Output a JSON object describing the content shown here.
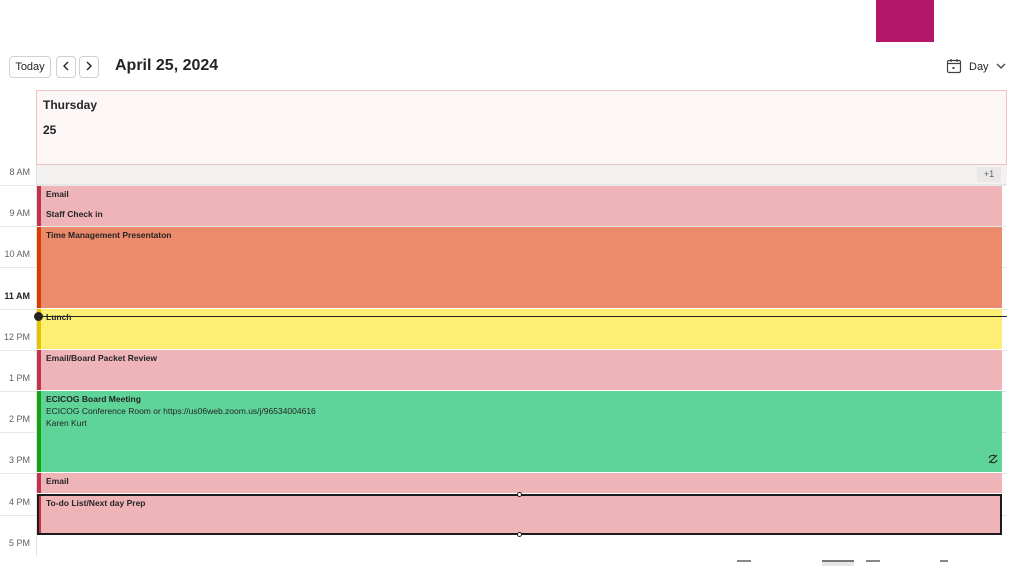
{
  "toolbar": {
    "today_label": "Today",
    "prev_icon": "chevron-left-icon",
    "next_icon": "chevron-right-icon",
    "date_title": "April 25, 2024",
    "view_icon": "calendar-icon",
    "view_label": "Day",
    "view_dropdown_icon": "chevron-down-icon"
  },
  "day": {
    "name": "Thursday",
    "number": "25",
    "more_badge": "+1"
  },
  "time_labels": [
    "8 AM",
    "9 AM",
    "10 AM",
    "11 AM",
    "12 PM",
    "1 PM",
    "2 PM",
    "3 PM",
    "4 PM",
    "5 PM"
  ],
  "current_hour": "11 AM",
  "events": [
    {
      "title": "Email",
      "start": "8:30 AM",
      "end": "9:00 AM",
      "category": "pink"
    },
    {
      "title": "Staff Check in",
      "start": "9:00 AM",
      "end": "9:30 AM",
      "category": "pink"
    },
    {
      "title": "Time Management Presentaton",
      "start": "9:30 AM",
      "end": "11:30 AM",
      "category": "orange"
    },
    {
      "title": "Lunch",
      "start": "11:30 AM",
      "end": "12:30 PM",
      "category": "yellow"
    },
    {
      "title": "Email/Board Packet Review",
      "start": "12:30 PM",
      "end": "1:30 PM",
      "category": "pink"
    },
    {
      "title": "ECICOG Board Meeting",
      "location": "ECICOG Conference Room or https://us06web.zoom.us/j/96534004616",
      "organizer": "Karen Kurt",
      "start": "1:30 PM",
      "end": "3:30 PM",
      "category": "green",
      "icon": "recurring-icon"
    },
    {
      "title": "Email",
      "start": "3:30 PM",
      "end": "4:00 PM",
      "category": "pink"
    },
    {
      "title": "To-do List/Next day Prep",
      "start": "4:00 PM",
      "end": "5:00 PM",
      "category": "pink",
      "selected": true
    }
  ],
  "colors": {
    "brand": "#b4166a",
    "pink": "#eeb4b8",
    "orange": "#eb8b6b",
    "yellow": "#fdef73",
    "green": "#5fd498"
  }
}
